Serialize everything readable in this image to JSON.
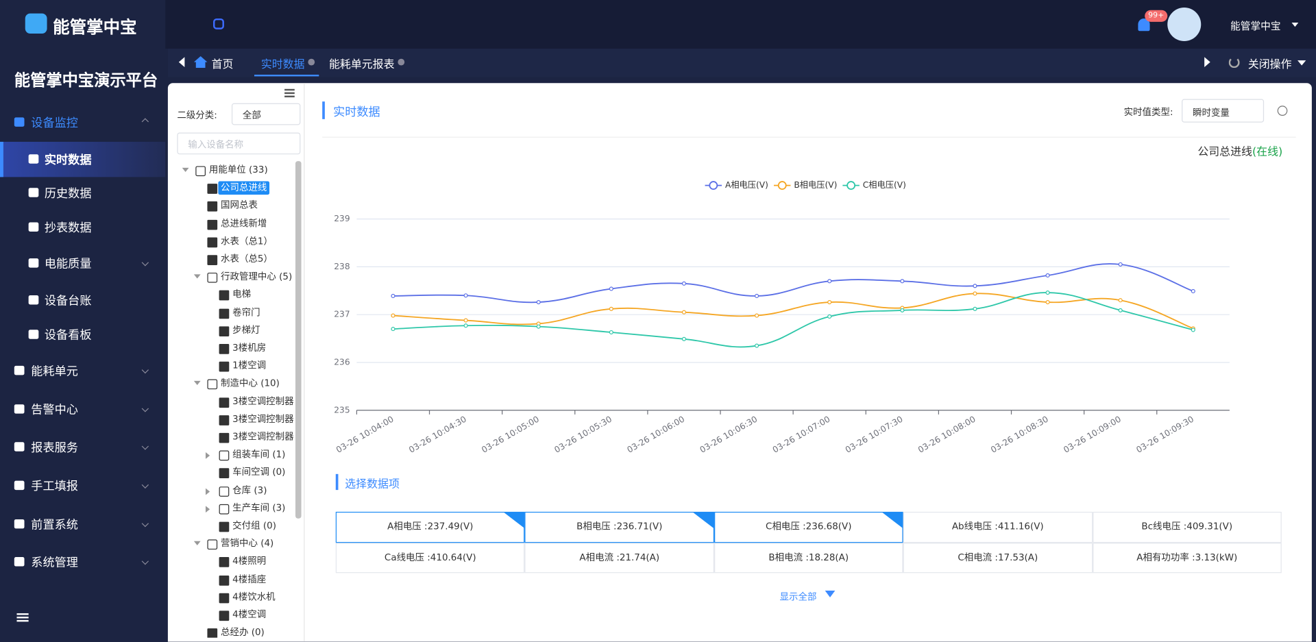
{
  "header": {
    "logo": "能管掌中宝",
    "platform": "能管掌中宝演示平台",
    "badge": "99+",
    "user": "能管掌中宝"
  },
  "sidebar": {
    "menu": [
      {
        "label": "设备监控",
        "level": 0,
        "expanded": true
      },
      {
        "label": "实时数据",
        "level": 1,
        "active": true
      },
      {
        "label": "历史数据",
        "level": 1
      },
      {
        "label": "抄表数据",
        "level": 1
      },
      {
        "label": "电能质量",
        "level": 1,
        "arrow": true
      },
      {
        "label": "设备台账",
        "level": 1
      },
      {
        "label": "设备看板",
        "level": 1
      },
      {
        "label": "能耗单元",
        "level": 0,
        "arrow": true
      },
      {
        "label": "告警中心",
        "level": 0,
        "arrow": true
      },
      {
        "label": "报表服务",
        "level": 0,
        "arrow": true
      },
      {
        "label": "手工填报",
        "level": 0,
        "arrow": true
      },
      {
        "label": "前置系统",
        "level": 0,
        "arrow": true
      },
      {
        "label": "系统管理",
        "level": 0,
        "arrow": true
      }
    ]
  },
  "tabs": {
    "home": "首页",
    "items": [
      "实时数据",
      "能耗单元报表"
    ],
    "close": "关闭操作"
  },
  "filter": {
    "label": "二级分类:",
    "select": "全部",
    "placeholder": "输入设备名称"
  },
  "tree": [
    {
      "label": "用能单位 (33)",
      "level": 0,
      "group": true,
      "expanded": true
    },
    {
      "label": "公司总进线",
      "level": 1,
      "selected": true
    },
    {
      "label": "国网总表",
      "level": 1
    },
    {
      "label": "总进线新增",
      "level": 1
    },
    {
      "label": "水表（总1）",
      "level": 1
    },
    {
      "label": "水表（总5）",
      "level": 1
    },
    {
      "label": "行政管理中心 (5)",
      "level": 1,
      "group": true,
      "expanded": true
    },
    {
      "label": "电梯",
      "level": 2
    },
    {
      "label": "卷帘门",
      "level": 2
    },
    {
      "label": "步梯灯",
      "level": 2
    },
    {
      "label": "3楼机房",
      "level": 2
    },
    {
      "label": "1楼空调",
      "level": 2
    },
    {
      "label": "制造中心 (10)",
      "level": 1,
      "group": true,
      "expanded": true
    },
    {
      "label": "3楼空调控制器",
      "level": 2
    },
    {
      "label": "3楼空调控制器",
      "level": 2
    },
    {
      "label": "3楼空调控制器",
      "level": 2
    },
    {
      "label": "组装车间 (1)",
      "level": 2,
      "group": true
    },
    {
      "label": "车间空调 (0)",
      "level": 2
    },
    {
      "label": "仓库 (3)",
      "level": 2,
      "group": true
    },
    {
      "label": "生产车间 (3)",
      "level": 2,
      "group": true
    },
    {
      "label": "交付组 (0)",
      "level": 2
    },
    {
      "label": "营销中心 (4)",
      "level": 1,
      "group": true,
      "expanded": true
    },
    {
      "label": "4楼照明",
      "level": 2
    },
    {
      "label": "4楼插座",
      "level": 2
    },
    {
      "label": "4楼饮水机",
      "level": 2
    },
    {
      "label": "4楼空调",
      "level": 2
    },
    {
      "label": "总经办 (0)",
      "level": 1
    }
  ],
  "panel": {
    "title": "实时数据",
    "type_label": "实时值类型:",
    "type_value": "瞬时变量",
    "device": "公司总进线",
    "status": "(在线)",
    "section": "选择数据项",
    "show_all": "显示全部",
    "items": [
      {
        "text": "A相电压 :237.49(V)",
        "checked": true
      },
      {
        "text": "B相电压 :236.71(V)",
        "checked": true
      },
      {
        "text": "C相电压 :236.68(V)",
        "checked": true
      },
      {
        "text": "Ab线电压 :411.16(V)"
      },
      {
        "text": "Bc线电压 :409.31(V)"
      },
      {
        "text": "Ca线电压 :410.64(V)"
      },
      {
        "text": "A相电流 :21.74(A)"
      },
      {
        "text": "B相电流 :18.28(A)"
      },
      {
        "text": "C相电流 :17.53(A)"
      },
      {
        "text": "A相有功功率 :3.13(kW)"
      }
    ]
  },
  "chart_data": {
    "type": "line",
    "categories": [
      "03-26 10:04:00",
      "03-26 10:04:30",
      "03-26 10:05:00",
      "03-26 10:05:30",
      "03-26 10:06:00",
      "03-26 10:06:30",
      "03-26 10:07:00",
      "03-26 10:07:30",
      "03-26 10:08:00",
      "03-26 10:08:30",
      "03-26 10:09:00",
      "03-26 10:09:30"
    ],
    "series": [
      {
        "name": "A相电压(V)",
        "color": "#5b6fe6",
        "values": [
          237.39,
          237.4,
          237.26,
          237.54,
          237.65,
          237.39,
          237.7,
          237.7,
          237.6,
          237.82,
          238.05,
          237.49
        ]
      },
      {
        "name": "B相电压(V)",
        "color": "#f5a623",
        "values": [
          236.98,
          236.88,
          236.81,
          237.12,
          237.05,
          236.98,
          237.26,
          237.14,
          237.44,
          237.26,
          237.3,
          236.71
        ]
      },
      {
        "name": "C相电压(V)",
        "color": "#2ec7a9",
        "values": [
          236.7,
          236.77,
          236.75,
          236.63,
          236.49,
          236.35,
          236.96,
          237.09,
          237.12,
          237.46,
          237.09,
          236.68
        ]
      }
    ],
    "ylim": [
      235,
      239
    ],
    "yticks": [
      235,
      236,
      237,
      238,
      239
    ],
    "grid": true,
    "legend": "top"
  }
}
